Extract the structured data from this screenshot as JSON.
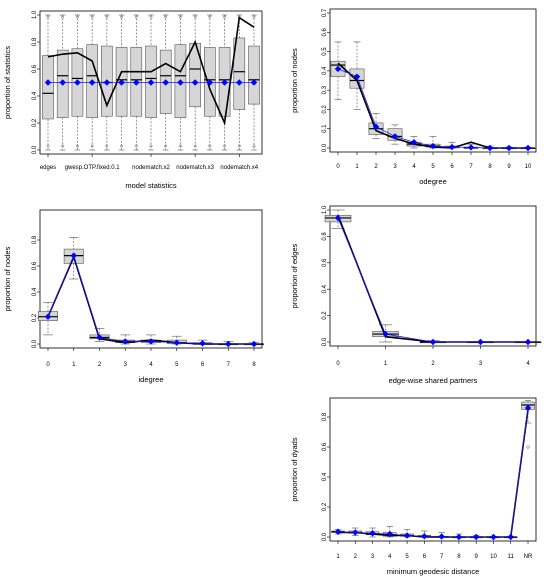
{
  "chart_data": [
    {
      "type": "boxplot",
      "xlabel": "model statistics",
      "ylabel": "proportion of statistics",
      "ylim": [
        0,
        1
      ],
      "yticks": [
        "0.0",
        "0.2",
        "0.4",
        "0.6",
        "0.8",
        "1.0"
      ],
      "x_tick_labels": [
        "edges",
        "gwesp.OTP.fixed.0.1",
        "nodematch.x2",
        "nodematch.x3",
        "nodematch.x4"
      ],
      "x_tick_positions": [
        1,
        4,
        8,
        11,
        14
      ],
      "n_boxes": 15,
      "boxes": [
        {
          "q1": 0.23,
          "median": 0.42,
          "q3": 0.7
        },
        {
          "q1": 0.24,
          "median": 0.55,
          "q3": 0.74
        },
        {
          "q1": 0.25,
          "median": 0.53,
          "q3": 0.75
        },
        {
          "q1": 0.24,
          "median": 0.55,
          "q3": 0.78
        },
        {
          "q1": 0.25,
          "median": 0.5,
          "q3": 0.77
        },
        {
          "q1": 0.25,
          "median": 0.52,
          "q3": 0.76
        },
        {
          "q1": 0.25,
          "median": 0.52,
          "q3": 0.76
        },
        {
          "q1": 0.24,
          "median": 0.53,
          "q3": 0.77
        },
        {
          "q1": 0.27,
          "median": 0.55,
          "q3": 0.74
        },
        {
          "q1": 0.24,
          "median": 0.55,
          "q3": 0.78
        },
        {
          "q1": 0.32,
          "median": 0.6,
          "q3": 0.79
        },
        {
          "q1": 0.25,
          "median": 0.52,
          "q3": 0.76
        },
        {
          "q1": 0.25,
          "median": 0.52,
          "q3": 0.76
        },
        {
          "q1": 0.3,
          "median": 0.58,
          "q3": 0.83
        },
        {
          "q1": 0.34,
          "median": 0.52,
          "q3": 0.77
        }
      ],
      "observed": [
        0.69,
        0.71,
        0.72,
        0.66,
        0.33,
        0.58,
        0.58,
        0.58,
        0.64,
        0.58,
        0.8,
        0.45,
        0.2,
        0.98,
        0.91
      ],
      "simulated_mean": [
        0.5,
        0.5,
        0.5,
        0.5,
        0.5,
        0.5,
        0.5,
        0.5,
        0.5,
        0.5,
        0.5,
        0.5,
        0.5,
        0.5,
        0.5
      ]
    },
    {
      "type": "boxplot",
      "xlabel": "odegree",
      "ylabel": "proportion of nodes",
      "ylim": [
        0,
        0.7
      ],
      "yticks": [
        "0.0",
        "0.1",
        "0.2",
        "0.3",
        "0.4",
        "0.5",
        "0.6",
        "0.7"
      ],
      "x": [
        "0",
        "1",
        "2",
        "3",
        "4",
        "5",
        "6",
        "7",
        "8",
        "9",
        "10"
      ],
      "boxes": [
        {
          "low": 0.25,
          "q1": 0.37,
          "median": 0.43,
          "q3": 0.45,
          "high": 0.55
        },
        {
          "low": 0.2,
          "q1": 0.31,
          "median": 0.35,
          "q3": 0.41,
          "high": 0.55
        },
        {
          "low": 0.05,
          "q1": 0.07,
          "median": 0.1,
          "q3": 0.13,
          "high": 0.18
        },
        {
          "low": 0.02,
          "q1": 0.04,
          "median": 0.06,
          "q3": 0.1,
          "high": 0.12
        },
        {
          "low": 0.0,
          "q1": 0.01,
          "median": 0.02,
          "q3": 0.03,
          "high": 0.06
        },
        {
          "low": 0.0,
          "q1": 0.005,
          "median": 0.01,
          "q3": 0.02,
          "high": 0.06
        },
        {
          "low": 0.0,
          "q1": 0.0,
          "median": 0.005,
          "q3": 0.01,
          "high": 0.03
        },
        {
          "low": 0.0,
          "q1": 0.0,
          "median": 0.0,
          "q3": 0.005,
          "high": 0.02
        },
        {
          "low": 0.0,
          "q1": 0.0,
          "median": 0.0,
          "q3": 0.0,
          "high": 0.01
        },
        {
          "low": 0.0,
          "q1": 0.0,
          "median": 0.0,
          "q3": 0.0,
          "high": 0.005
        },
        {
          "low": 0.0,
          "q1": 0.0,
          "median": 0.0,
          "q3": 0.0,
          "high": 0.005
        }
      ],
      "observed": [
        0.44,
        0.35,
        0.09,
        0.05,
        0.02,
        0.005,
        0.0,
        0.03,
        0.0,
        0.0,
        0.0
      ],
      "simulated_mean": [
        0.41,
        0.37,
        0.11,
        0.06,
        0.03,
        0.01,
        0.005,
        0.003,
        0.0,
        0.0,
        0.0
      ]
    },
    {
      "type": "boxplot",
      "xlabel": "idegree",
      "ylabel": "proportion of nodes",
      "ylim": [
        0,
        1.0
      ],
      "yticks": [
        "0.0",
        "0.2",
        "0.4",
        "0.6",
        "0.8"
      ],
      "x": [
        "0",
        "1",
        "2",
        "3",
        "4",
        "5",
        "6",
        "7",
        "8"
      ],
      "boxes": [
        {
          "low": 0.07,
          "q1": 0.18,
          "median": 0.21,
          "q3": 0.25,
          "high": 0.32
        },
        {
          "low": 0.5,
          "q1": 0.62,
          "median": 0.68,
          "q3": 0.73,
          "high": 0.82
        },
        {
          "low": 0.02,
          "q1": 0.04,
          "median": 0.05,
          "q3": 0.07,
          "high": 0.12
        },
        {
          "low": 0.0,
          "q1": 0.01,
          "median": 0.02,
          "q3": 0.03,
          "high": 0.07
        },
        {
          "low": 0.0,
          "q1": 0.01,
          "median": 0.02,
          "q3": 0.03,
          "high": 0.07
        },
        {
          "low": 0.0,
          "q1": 0.005,
          "median": 0.01,
          "q3": 0.03,
          "high": 0.06
        },
        {
          "low": 0.0,
          "q1": 0.0,
          "median": 0.0,
          "q3": 0.01,
          "high": 0.03
        },
        {
          "low": 0.0,
          "q1": 0.0,
          "median": 0.0,
          "q3": 0.0,
          "high": 0.02
        },
        {
          "low": 0.0,
          "q1": 0.0,
          "median": 0.0,
          "q3": 0.0,
          "high": 0.01
        }
      ],
      "observed": [
        0.21,
        0.67,
        0.04,
        0.01,
        0.03,
        0.01,
        0.0,
        0.0,
        0.0
      ],
      "simulated_mean": [
        0.21,
        0.68,
        0.05,
        0.02,
        0.02,
        0.01,
        0.005,
        0.0,
        0.0
      ]
    },
    {
      "type": "boxplot",
      "xlabel": "edge-wise shared partners",
      "ylabel": "proportion of edges",
      "ylim": [
        0,
        1.0
      ],
      "yticks": [
        "0.0",
        "0.2",
        "0.4",
        "0.6",
        "0.8",
        "1.0"
      ],
      "x": [
        "0",
        "1",
        "2",
        "3",
        "4"
      ],
      "boxes": [
        {
          "low": 0.86,
          "q1": 0.91,
          "median": 0.94,
          "q3": 0.96,
          "high": 1.0
        },
        {
          "low": 0.0,
          "q1": 0.04,
          "median": 0.06,
          "q3": 0.08,
          "high": 0.13
        },
        {
          "low": 0.0,
          "q1": 0.0,
          "median": 0.0,
          "q3": 0.0,
          "high": 0.01
        },
        {
          "low": 0.0,
          "q1": 0.0,
          "median": 0.0,
          "q3": 0.0,
          "high": 0.0
        },
        {
          "low": 0.0,
          "q1": 0.0,
          "median": 0.0,
          "q3": 0.0,
          "high": 0.0
        }
      ],
      "observed": [
        0.96,
        0.04,
        0.0,
        0.0,
        0.0
      ],
      "simulated_mean": [
        0.94,
        0.06,
        0.0,
        0.0,
        0.0
      ]
    },
    {
      "type": "boxplot",
      "xlabel": "minimum geodesic distance",
      "ylabel": "proportion of dyads",
      "ylim": [
        0,
        0.9
      ],
      "yticks": [
        "0.0",
        "0.2",
        "0.4",
        "0.6",
        "0.8"
      ],
      "x": [
        "1",
        "2",
        "3",
        "4",
        "5",
        "6",
        "7",
        "8",
        "9",
        "10",
        "11",
        "NR"
      ],
      "boxes": [
        {
          "low": 0.02,
          "q1": 0.03,
          "median": 0.035,
          "q3": 0.04,
          "high": 0.05
        },
        {
          "low": 0.01,
          "q1": 0.025,
          "median": 0.03,
          "q3": 0.04,
          "high": 0.06
        },
        {
          "low": 0.0,
          "q1": 0.015,
          "median": 0.02,
          "q3": 0.035,
          "high": 0.06
        },
        {
          "low": 0.0,
          "q1": 0.005,
          "median": 0.015,
          "q3": 0.03,
          "high": 0.07
        },
        {
          "low": 0.0,
          "q1": 0.005,
          "median": 0.01,
          "q3": 0.02,
          "high": 0.05
        },
        {
          "low": 0.0,
          "q1": 0.0,
          "median": 0.005,
          "q3": 0.01,
          "high": 0.04
        },
        {
          "low": 0.0,
          "q1": 0.0,
          "median": 0.0,
          "q3": 0.005,
          "high": 0.03
        },
        {
          "low": 0.0,
          "q1": 0.0,
          "median": 0.0,
          "q3": 0.0,
          "high": 0.02
        },
        {
          "low": 0.0,
          "q1": 0.0,
          "median": 0.0,
          "q3": 0.0,
          "high": 0.01
        },
        {
          "low": 0.0,
          "q1": 0.0,
          "median": 0.0,
          "q3": 0.0,
          "high": 0.005
        },
        {
          "low": 0.0,
          "q1": 0.0,
          "median": 0.0,
          "q3": 0.0,
          "high": 0.005
        },
        {
          "low": 0.76,
          "q1": 0.85,
          "median": 0.88,
          "q3": 0.9,
          "high": 0.91,
          "outliers": [
            0.6
          ]
        }
      ],
      "observed": [
        0.03,
        0.03,
        0.02,
        0.01,
        0.01,
        0.0,
        0.0,
        0.0,
        0.0,
        0.0,
        0.0,
        0.85
      ],
      "simulated_mean": [
        0.035,
        0.03,
        0.025,
        0.02,
        0.01,
        0.005,
        0.003,
        0.0,
        0.0,
        0.0,
        0.0,
        0.86
      ]
    }
  ]
}
